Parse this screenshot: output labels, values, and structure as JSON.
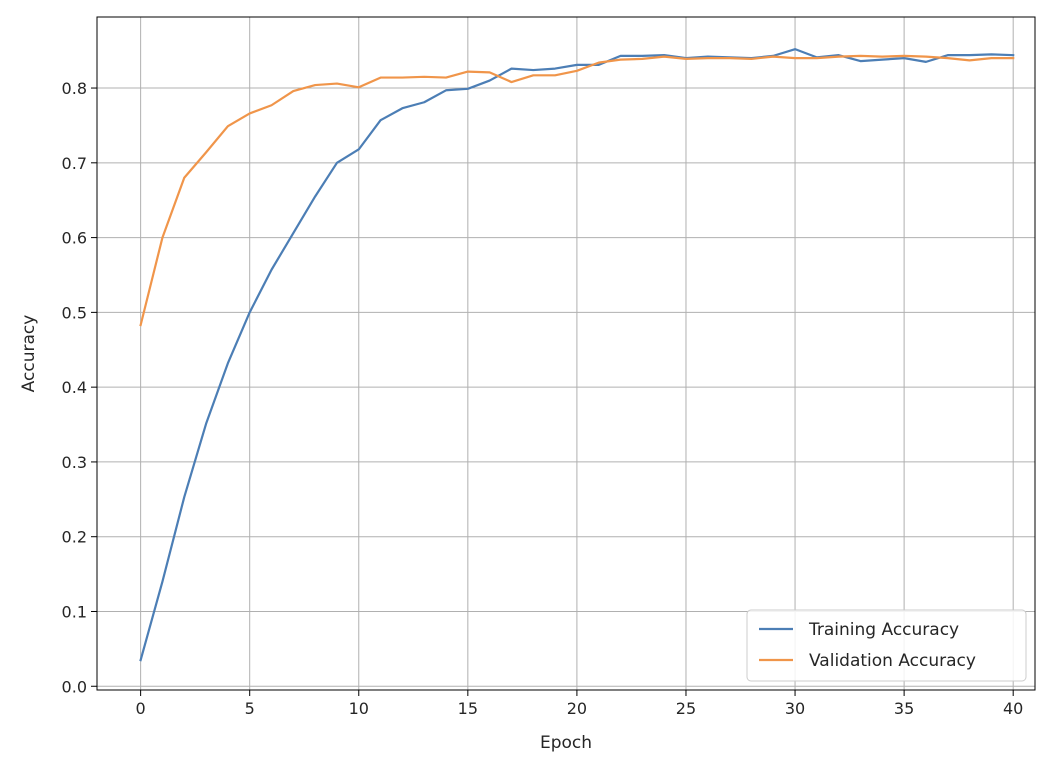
{
  "chart_data": {
    "type": "line",
    "title": "",
    "xlabel": "Epoch",
    "ylabel": "Accuracy",
    "xlim": [
      -2,
      41
    ],
    "ylim": [
      -0.005,
      0.895
    ],
    "xticks": [
      0,
      5,
      10,
      15,
      20,
      25,
      30,
      35,
      40
    ],
    "xtick_labels": [
      "0",
      "5",
      "10",
      "15",
      "20",
      "25",
      "30",
      "35",
      "40"
    ],
    "yticks": [
      0.0,
      0.1,
      0.2,
      0.3,
      0.4,
      0.5,
      0.6,
      0.7,
      0.8
    ],
    "ytick_labels": [
      "0.0",
      "0.1",
      "0.2",
      "0.3",
      "0.4",
      "0.5",
      "0.6",
      "0.7",
      "0.8"
    ],
    "grid": true,
    "legend_position": "bottom-right",
    "x": [
      0,
      1,
      2,
      3,
      4,
      5,
      6,
      7,
      8,
      9,
      10,
      11,
      12,
      13,
      14,
      15,
      16,
      17,
      18,
      19,
      20,
      21,
      22,
      23,
      24,
      25,
      26,
      27,
      28,
      29,
      30,
      31,
      32,
      33,
      34,
      35,
      36,
      37,
      38,
      39,
      40
    ],
    "series": [
      {
        "name": "Training Accuracy",
        "color": "#4c7eb5",
        "values": [
          0.035,
          0.14,
          0.253,
          0.351,
          0.432,
          0.5,
          0.557,
          0.606,
          0.655,
          0.7,
          0.718,
          0.757,
          0.773,
          0.781,
          0.797,
          0.799,
          0.81,
          0.826,
          0.824,
          0.826,
          0.831,
          0.831,
          0.843,
          0.843,
          0.844,
          0.84,
          0.842,
          0.841,
          0.84,
          0.843,
          0.852,
          0.841,
          0.844,
          0.836,
          0.838,
          0.84,
          0.835,
          0.844,
          0.844,
          0.845,
          0.844
        ]
      },
      {
        "name": "Validation Accuracy",
        "color": "#f0954a",
        "values": [
          0.483,
          0.6,
          0.68,
          0.714,
          0.749,
          0.766,
          0.777,
          0.796,
          0.804,
          0.806,
          0.801,
          0.814,
          0.814,
          0.815,
          0.814,
          0.822,
          0.821,
          0.808,
          0.817,
          0.817,
          0.823,
          0.834,
          0.838,
          0.839,
          0.842,
          0.839,
          0.84,
          0.84,
          0.839,
          0.842,
          0.84,
          0.84,
          0.842,
          0.843,
          0.842,
          0.843,
          0.842,
          0.84,
          0.837,
          0.84,
          0.84
        ]
      }
    ]
  }
}
